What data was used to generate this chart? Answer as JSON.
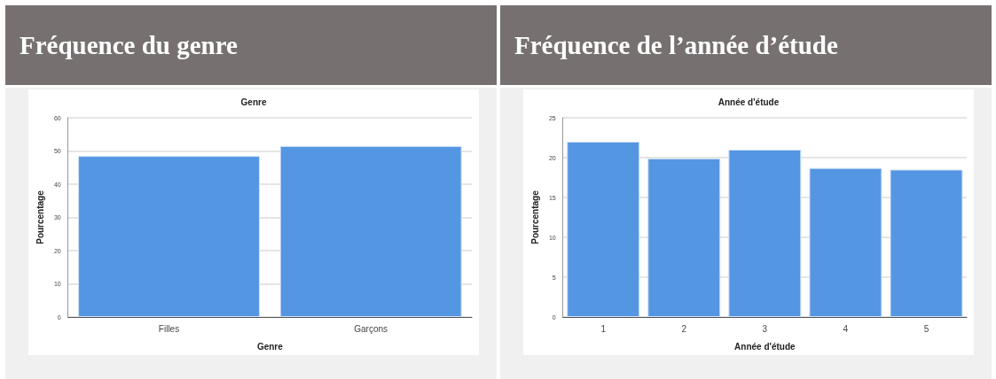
{
  "chart_data": [
    {
      "type": "bar",
      "title": "Fréquence du genre",
      "subtitle": "Genre",
      "xlabel": "Genre",
      "ylabel": "Pourcentage",
      "categories": [
        "Filles",
        "Garçons"
      ],
      "values": [
        48.5,
        51.5
      ],
      "color": "#5596e3",
      "ylim": [
        0,
        60
      ],
      "yticks": [
        0,
        10,
        20,
        30,
        40,
        50,
        60
      ],
      "grid": "y"
    },
    {
      "type": "bar",
      "title": "Fréquence de l’année d’étude",
      "subtitle": "Année d'étude",
      "xlabel": "Année d'étude",
      "ylabel": "Pourcentage",
      "categories": [
        "1",
        "2",
        "3",
        "4",
        "5"
      ],
      "values": [
        22.0,
        19.9,
        21.0,
        18.7,
        18.5
      ],
      "color": "#5596e3",
      "ylim": [
        0,
        25
      ],
      "yticks": [
        0,
        5,
        10,
        15,
        20,
        25
      ],
      "grid": "y"
    }
  ]
}
